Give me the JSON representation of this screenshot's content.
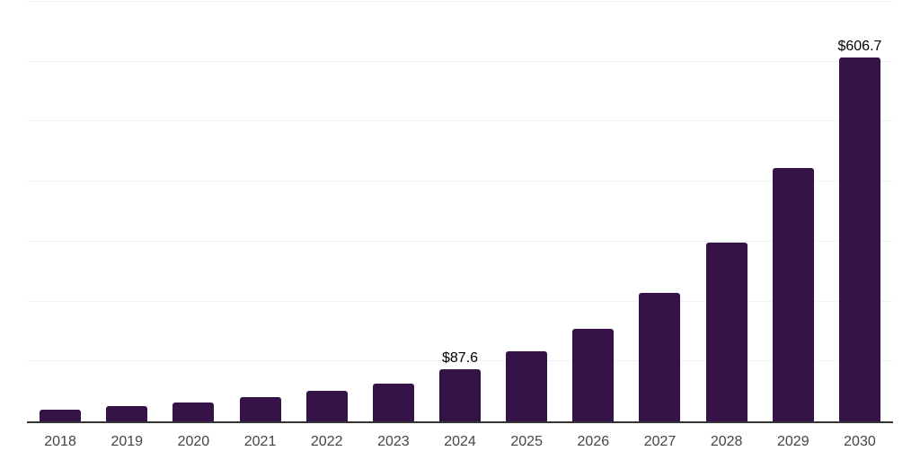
{
  "chart_data": {
    "type": "bar",
    "title": "",
    "xlabel": "",
    "ylabel": "",
    "categories": [
      "2018",
      "2019",
      "2020",
      "2021",
      "2022",
      "2023",
      "2024",
      "2025",
      "2026",
      "2027",
      "2028",
      "2029",
      "2030"
    ],
    "values": [
      20,
      25,
      31,
      40,
      51,
      63,
      87.6,
      117,
      154,
      214,
      299,
      422,
      606.7
    ],
    "data_labels": [
      "",
      "",
      "",
      "",
      "",
      "",
      "$87.6",
      "",
      "",
      "",
      "",
      "",
      "$606.7"
    ],
    "ylim": [
      0,
      700
    ],
    "gridline_step": 100,
    "grid": "horizontal",
    "legend": "none",
    "colors": {
      "bar": "#351349",
      "axis_line": "#343434",
      "gridline": "#f2f2f2",
      "data_label": "#000000",
      "tick_label": "#454545",
      "background": "#ffffff"
    }
  }
}
